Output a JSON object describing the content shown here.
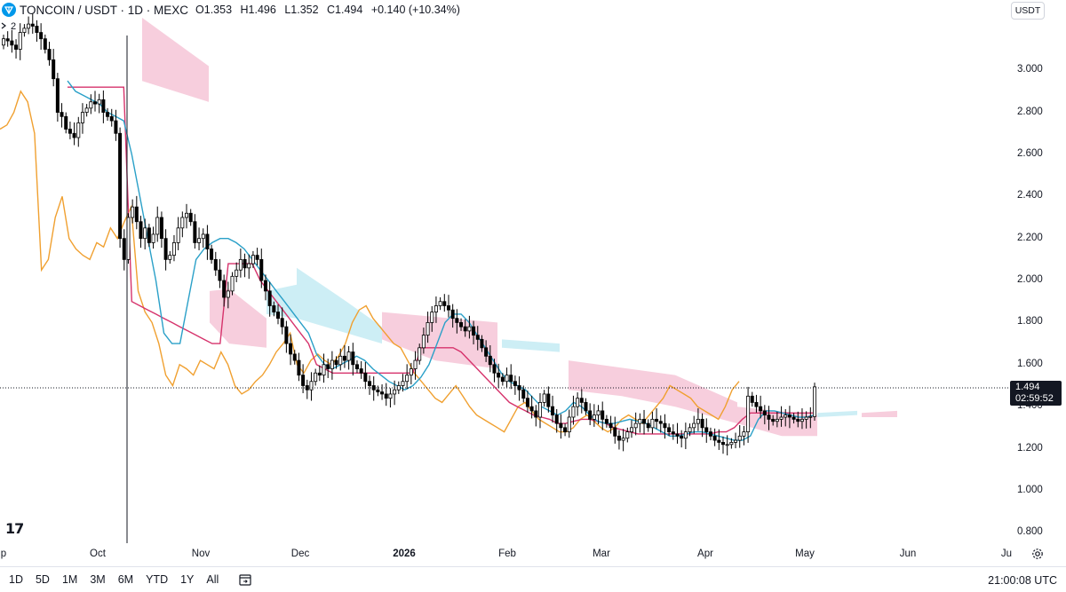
{
  "header": {
    "title": "TONCOIN / USDT · 1D · MEXC",
    "open": "O1.353",
    "high": "H1.496",
    "low": "L1.352",
    "close": "C1.494",
    "change": "+0.140 (+10.34%)",
    "indicator_count": "2"
  },
  "currency": "USDT",
  "price_tag": {
    "price": "1.494",
    "countdown": "02:59:52"
  },
  "y_ticks": [
    "3.000",
    "2.800",
    "2.600",
    "2.400",
    "2.200",
    "2.000",
    "1.800",
    "1.600",
    "1.400",
    "1.200",
    "1.000",
    "0.800"
  ],
  "x_ticks": [
    "p",
    "Oct",
    "Nov",
    "Dec",
    "2026",
    "Feb",
    "Mar",
    "Apr",
    "May",
    "Jun",
    "Ju"
  ],
  "ranges": [
    "1D",
    "5D",
    "1M",
    "3M",
    "6M",
    "YTD",
    "1Y",
    "All"
  ],
  "clock": "21:00:08 UTC",
  "colors": {
    "up_candle": "#ffffff",
    "down_candle": "#000000",
    "conversion_line": "#2aa0c8",
    "base_line": "#d6336c",
    "lagging_span": "#f0a030",
    "cloud_bear": "#f7cedd",
    "cloud_bull": "#cdeef5"
  },
  "chart_data": {
    "type": "candlestick",
    "title": "TONCOIN / USDT · 1D · MEXC",
    "ylim": [
      0.78,
      3.25
    ],
    "x_ticks": [
      "p",
      "Oct",
      "Nov",
      "Dec",
      "2026",
      "Feb",
      "Mar",
      "Apr",
      "May",
      "Jun",
      "Ju"
    ],
    "y_ticks": [
      3.0,
      2.8,
      2.6,
      2.4,
      2.2,
      2.0,
      1.8,
      1.6,
      1.4,
      1.2,
      1.0,
      0.8
    ],
    "last_price": 1.494,
    "candles_close": [
      3.15,
      3.14,
      3.12,
      3.1,
      3.18,
      3.2,
      3.22,
      3.21,
      3.18,
      3.15,
      3.1,
      3.05,
      2.96,
      2.8,
      2.78,
      2.72,
      2.7,
      2.68,
      2.75,
      2.8,
      2.82,
      2.85,
      2.84,
      2.86,
      2.8,
      2.78,
      2.76,
      2.7,
      2.2,
      2.1,
      2.3,
      2.35,
      2.28,
      2.2,
      2.25,
      2.18,
      2.22,
      2.3,
      2.2,
      2.1,
      2.12,
      2.18,
      2.25,
      2.3,
      2.32,
      2.28,
      2.18,
      2.2,
      2.22,
      2.15,
      2.1,
      2.05,
      2.0,
      1.92,
      1.95,
      2.02,
      2.05,
      2.1,
      2.06,
      2.08,
      2.12,
      2.1,
      2.0,
      1.95,
      1.88,
      1.85,
      1.82,
      1.78,
      1.7,
      1.65,
      1.62,
      1.55,
      1.5,
      1.48,
      1.52,
      1.56,
      1.55,
      1.6,
      1.58,
      1.62,
      1.6,
      1.64,
      1.62,
      1.66,
      1.6,
      1.58,
      1.56,
      1.52,
      1.5,
      1.48,
      1.47,
      1.46,
      1.44,
      1.46,
      1.48,
      1.5,
      1.52,
      1.55,
      1.58,
      1.62,
      1.68,
      1.74,
      1.8,
      1.85,
      1.88,
      1.9,
      1.88,
      1.86,
      1.82,
      1.8,
      1.78,
      1.76,
      1.78,
      1.74,
      1.72,
      1.68,
      1.64,
      1.6,
      1.56,
      1.54,
      1.52,
      1.55,
      1.52,
      1.5,
      1.48,
      1.44,
      1.4,
      1.38,
      1.35,
      1.42,
      1.46,
      1.4,
      1.36,
      1.32,
      1.3,
      1.28,
      1.35,
      1.4,
      1.44,
      1.42,
      1.38,
      1.34,
      1.36,
      1.38,
      1.34,
      1.32,
      1.3,
      1.26,
      1.24,
      1.25,
      1.28,
      1.3,
      1.32,
      1.34,
      1.32,
      1.3,
      1.34,
      1.33,
      1.32,
      1.3,
      1.28,
      1.27,
      1.26,
      1.25,
      1.28,
      1.3,
      1.32,
      1.34,
      1.3,
      1.28,
      1.26,
      1.24,
      1.23,
      1.22,
      1.22,
      1.23,
      1.24,
      1.26,
      1.28,
      1.45,
      1.42,
      1.4,
      1.38,
      1.36,
      1.34,
      1.33,
      1.34,
      1.35,
      1.36,
      1.35,
      1.34,
      1.33,
      1.34,
      1.35,
      1.353,
      1.494
    ],
    "tenkan": [
      2.95,
      2.9,
      2.88,
      2.86,
      2.84,
      2.8,
      2.78,
      2.76,
      2.6,
      2.4,
      2.2,
      2.0,
      1.75,
      1.7,
      1.7,
      1.9,
      2.1,
      2.15,
      2.18,
      2.2,
      2.2,
      2.18,
      2.15,
      2.1,
      2.05,
      2.0,
      1.95,
      1.9,
      1.85,
      1.8,
      1.75,
      1.65,
      1.6,
      1.58,
      1.6,
      1.62,
      1.64,
      1.62,
      1.58,
      1.55,
      1.52,
      1.5,
      1.48,
      1.5,
      1.54,
      1.6,
      1.7,
      1.8,
      1.84,
      1.84,
      1.8,
      1.74,
      1.68,
      1.62,
      1.56,
      1.52,
      1.5,
      1.48,
      1.44,
      1.4,
      1.38,
      1.36,
      1.38,
      1.42,
      1.4,
      1.36,
      1.33,
      1.32,
      1.32,
      1.33,
      1.34,
      1.33,
      1.32,
      1.3,
      1.28,
      1.26,
      1.26,
      1.27,
      1.28,
      1.28,
      1.27,
      1.26,
      1.25,
      1.24,
      1.24,
      1.26,
      1.34,
      1.38,
      1.38,
      1.37,
      1.36,
      1.35,
      1.35,
      1.36
    ],
    "kijun": [
      2.92,
      2.92,
      2.92,
      2.92,
      2.92,
      2.92,
      2.92,
      2.92,
      1.9,
      1.88,
      1.86,
      1.84,
      1.82,
      1.8,
      1.78,
      1.76,
      1.74,
      1.72,
      1.7,
      1.7,
      2.08,
      2.08,
      2.08,
      2.08,
      2.0,
      1.95,
      1.9,
      1.85,
      1.8,
      1.75,
      1.7,
      1.6,
      1.58,
      1.56,
      1.56,
      1.56,
      1.56,
      1.56,
      1.56,
      1.56,
      1.56,
      1.56,
      1.56,
      1.56,
      1.68,
      1.68,
      1.68,
      1.68,
      1.68,
      1.66,
      1.62,
      1.58,
      1.54,
      1.5,
      1.46,
      1.42,
      1.4,
      1.38,
      1.36,
      1.35,
      1.34,
      1.32,
      1.32,
      1.33,
      1.34,
      1.34,
      1.33,
      1.32,
      1.3,
      1.29,
      1.28,
      1.27,
      1.27,
      1.27,
      1.27,
      1.27,
      1.27,
      1.27,
      1.27,
      1.27,
      1.27,
      1.28,
      1.28,
      1.3,
      1.34,
      1.37,
      1.37,
      1.37,
      1.37,
      1.37,
      1.37,
      1.37,
      1.37,
      1.37
    ],
    "chikou": [
      2.72,
      2.74,
      2.8,
      2.9,
      2.85,
      2.7,
      2.05,
      2.1,
      2.3,
      2.4,
      2.2,
      2.15,
      2.12,
      2.1,
      2.18,
      2.16,
      2.25,
      2.2,
      2.28,
      2.35,
      1.95,
      1.85,
      1.8,
      1.7,
      1.55,
      1.5,
      1.6,
      1.58,
      1.55,
      1.62,
      1.6,
      1.58,
      1.66,
      1.6,
      1.5,
      1.46,
      1.48,
      1.52,
      1.55,
      1.6,
      1.66,
      1.7,
      1.75,
      1.6,
      1.56,
      1.62,
      1.65,
      1.62,
      1.6,
      1.64,
      1.7,
      1.8,
      1.86,
      1.88,
      1.82,
      1.78,
      1.74,
      1.7,
      1.68,
      1.62,
      1.56,
      1.52,
      1.48,
      1.44,
      1.42,
      1.46,
      1.5,
      1.45,
      1.4,
      1.36,
      1.34,
      1.32,
      1.3,
      1.28,
      1.34,
      1.4,
      1.42,
      1.38,
      1.34,
      1.32,
      1.3,
      1.28,
      1.28,
      1.3,
      1.34,
      1.36,
      1.33,
      1.3,
      1.28,
      1.3,
      1.34,
      1.36,
      1.34,
      1.32,
      1.36,
      1.4,
      1.44,
      1.5,
      1.48,
      1.46,
      1.44,
      1.4,
      1.38,
      1.36,
      1.34,
      1.4,
      1.48,
      1.52
    ]
  }
}
